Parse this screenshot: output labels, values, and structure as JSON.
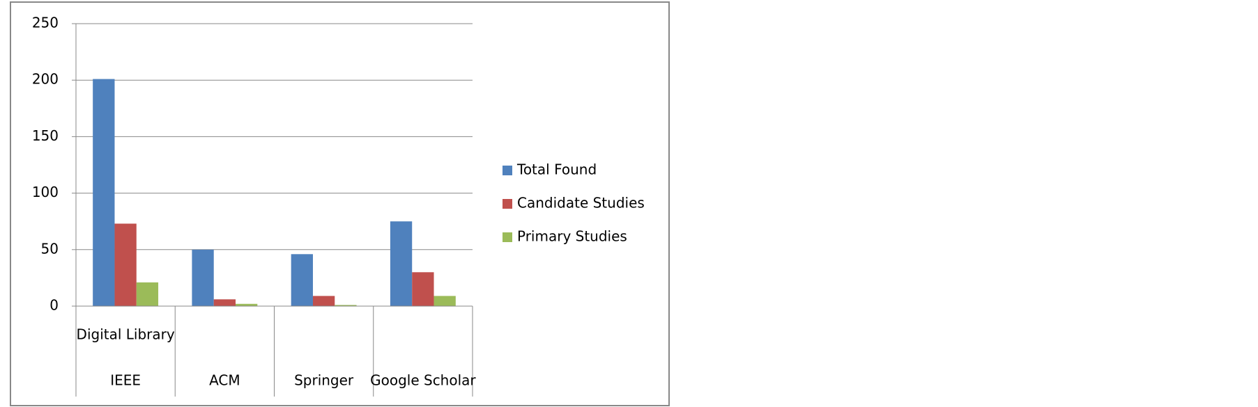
{
  "chart_data": {
    "type": "bar",
    "x_label": "Digital Library",
    "categories": [
      "IEEE",
      "ACM",
      "Springer",
      "Google Scholar"
    ],
    "series": [
      {
        "name": "Total Found",
        "color": "#4f81bd",
        "values": [
          201,
          50,
          46,
          75
        ]
      },
      {
        "name": "Candidate Studies",
        "color": "#c0504d",
        "values": [
          73,
          6,
          9,
          30
        ]
      },
      {
        "name": "Primary Studies",
        "color": "#9bbb59",
        "values": [
          21,
          2,
          1,
          9
        ]
      }
    ],
    "ylim": [
      0,
      250
    ],
    "yticks": [
      0,
      50,
      100,
      150,
      200,
      250
    ],
    "grid": true,
    "legend": "right"
  }
}
